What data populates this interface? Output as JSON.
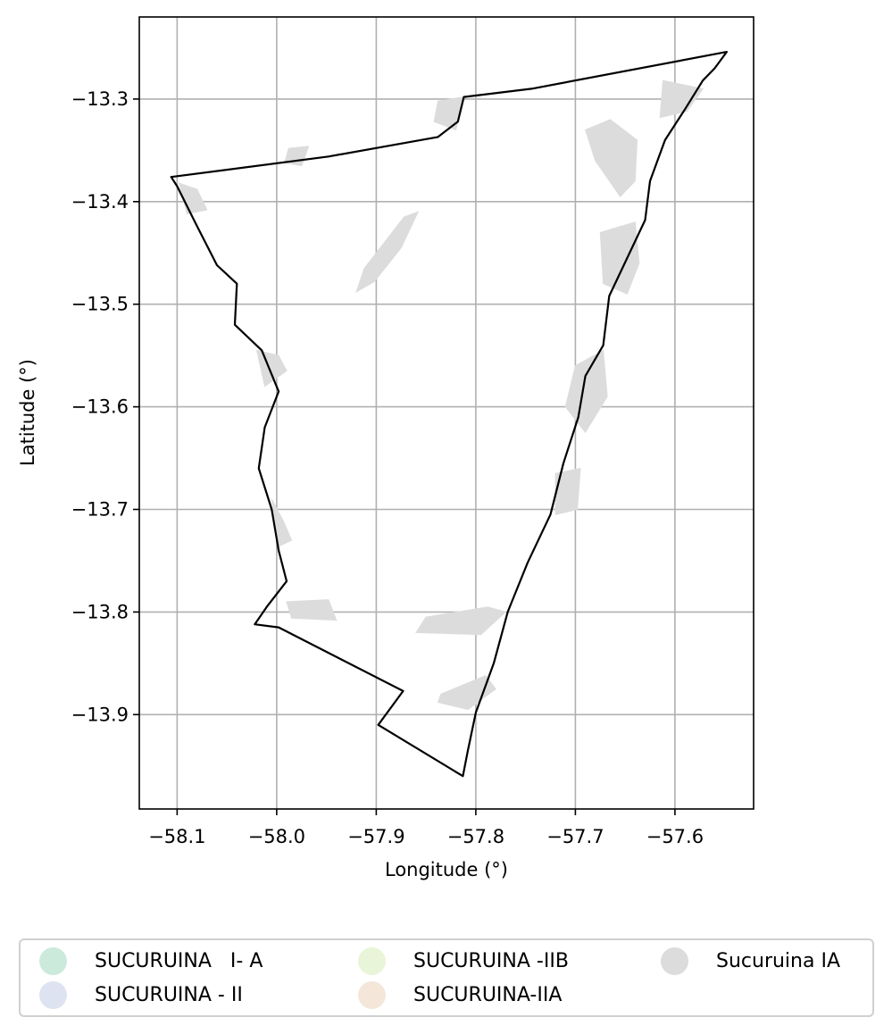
{
  "map": {
    "xlabel": "Longitude (°)",
    "ylabel": "Latitude (°)",
    "x_ticks": [
      -58.1,
      -58.0,
      -57.9,
      -57.8,
      -57.7,
      -57.6
    ],
    "x_tick_labels": [
      "−58.1",
      "−58.0",
      "−57.9",
      "−57.8",
      "−57.7",
      "−57.6"
    ],
    "y_ticks": [
      -13.3,
      -13.4,
      -13.5,
      -13.6,
      -13.7,
      -13.8,
      -13.9
    ],
    "y_tick_labels": [
      "−13.3",
      "−13.4",
      "−13.5",
      "−13.6",
      "−13.7",
      "−13.8",
      "−13.9"
    ],
    "xlim": [
      -58.138,
      -57.521
    ],
    "ylim": [
      -13.992,
      -13.22
    ],
    "grid": true,
    "boundary_color": "#000000",
    "zone_fill_color": "#dcdcdc",
    "boundary": [
      [
        -58.106,
        -13.376
      ],
      [
        -57.948,
        -13.356
      ],
      [
        -57.838,
        -13.337
      ],
      [
        -57.818,
        -13.322
      ],
      [
        -57.812,
        -13.298
      ],
      [
        -57.744,
        -13.29
      ],
      [
        -57.548,
        -13.254
      ],
      [
        -57.56,
        -13.27
      ],
      [
        -57.572,
        -13.282
      ],
      [
        -57.59,
        -13.31
      ],
      [
        -57.61,
        -13.34
      ],
      [
        -57.625,
        -13.38
      ],
      [
        -57.63,
        -13.418
      ],
      [
        -57.648,
        -13.455
      ],
      [
        -57.666,
        -13.492
      ],
      [
        -57.672,
        -13.54
      ],
      [
        -57.69,
        -13.57
      ],
      [
        -57.697,
        -13.61
      ],
      [
        -57.712,
        -13.655
      ],
      [
        -57.725,
        -13.705
      ],
      [
        -57.748,
        -13.752
      ],
      [
        -57.768,
        -13.8
      ],
      [
        -57.782,
        -13.85
      ],
      [
        -57.8,
        -13.898
      ],
      [
        -57.808,
        -13.935
      ],
      [
        -57.813,
        -13.96
      ],
      [
        -57.898,
        -13.91
      ],
      [
        -57.873,
        -13.877
      ],
      [
        -57.998,
        -13.815
      ],
      [
        -58.022,
        -13.812
      ],
      [
        -58.01,
        -13.795
      ],
      [
        -57.99,
        -13.77
      ],
      [
        -57.998,
        -13.74
      ],
      [
        -58.005,
        -13.7
      ],
      [
        -58.018,
        -13.66
      ],
      [
        -58.012,
        -13.62
      ],
      [
        -57.998,
        -13.585
      ],
      [
        -58.015,
        -13.545
      ],
      [
        -58.042,
        -13.52
      ],
      [
        -58.04,
        -13.48
      ],
      [
        -58.06,
        -13.462
      ],
      [
        -58.082,
        -13.42
      ],
      [
        -58.1,
        -13.385
      ],
      [
        -58.106,
        -13.376
      ]
    ],
    "zones": [
      [
        [
          -57.612,
          -13.282
        ],
        [
          -57.572,
          -13.29
        ],
        [
          -57.588,
          -13.312
        ],
        [
          -57.615,
          -13.318
        ]
      ],
      [
        [
          -57.69,
          -13.33
        ],
        [
          -57.665,
          -13.32
        ],
        [
          -57.638,
          -13.34
        ],
        [
          -57.64,
          -13.38
        ],
        [
          -57.655,
          -13.395
        ],
        [
          -57.68,
          -13.36
        ]
      ],
      [
        [
          -57.675,
          -13.43
        ],
        [
          -57.64,
          -13.42
        ],
        [
          -57.636,
          -13.46
        ],
        [
          -57.648,
          -13.49
        ],
        [
          -57.672,
          -13.48
        ]
      ],
      [
        [
          -57.7,
          -13.56
        ],
        [
          -57.672,
          -13.545
        ],
        [
          -57.668,
          -13.59
        ],
        [
          -57.69,
          -13.625
        ],
        [
          -57.71,
          -13.6
        ]
      ],
      [
        [
          -57.72,
          -13.665
        ],
        [
          -57.695,
          -13.66
        ],
        [
          -57.698,
          -13.7
        ],
        [
          -57.72,
          -13.705
        ]
      ],
      [
        [
          -57.85,
          -13.805
        ],
        [
          -57.788,
          -13.795
        ],
        [
          -57.77,
          -13.8
        ],
        [
          -57.795,
          -13.822
        ],
        [
          -57.86,
          -13.82
        ]
      ],
      [
        [
          -57.835,
          -13.88
        ],
        [
          -57.79,
          -13.862
        ],
        [
          -57.78,
          -13.875
        ],
        [
          -57.808,
          -13.895
        ],
        [
          -57.838,
          -13.888
        ]
      ],
      [
        [
          -57.838,
          -13.302
        ],
        [
          -57.812,
          -13.298
        ],
        [
          -57.82,
          -13.33
        ],
        [
          -57.842,
          -13.322
        ]
      ],
      [
        [
          -57.988,
          -13.348
        ],
        [
          -57.968,
          -13.346
        ],
        [
          -57.975,
          -13.365
        ],
        [
          -57.992,
          -13.362
        ]
      ],
      [
        [
          -57.872,
          -13.415
        ],
        [
          -57.858,
          -13.41
        ],
        [
          -57.875,
          -13.445
        ],
        [
          -57.902,
          -13.478
        ],
        [
          -57.92,
          -13.488
        ],
        [
          -57.912,
          -13.465
        ]
      ],
      [
        [
          -58.098,
          -13.382
        ],
        [
          -58.08,
          -13.388
        ],
        [
          -58.07,
          -13.408
        ],
        [
          -58.09,
          -13.412
        ]
      ],
      [
        [
          -58.02,
          -13.545
        ],
        [
          -57.998,
          -13.55
        ],
        [
          -57.99,
          -13.565
        ],
        [
          -58.012,
          -13.58
        ]
      ],
      [
        [
          -58.005,
          -13.69
        ],
        [
          -57.993,
          -13.712
        ],
        [
          -57.985,
          -13.73
        ],
        [
          -57.998,
          -13.736
        ]
      ],
      [
        [
          -57.99,
          -13.79
        ],
        [
          -57.948,
          -13.788
        ],
        [
          -57.94,
          -13.808
        ],
        [
          -57.985,
          -13.806
        ]
      ]
    ]
  },
  "legend": {
    "items": [
      {
        "label": "SUCURUINA   I- A",
        "color": "#cbeadb"
      },
      {
        "label": "SUCURUINA - II",
        "color": "#dde3f0"
      },
      {
        "label": "SUCURUINA -IIB",
        "color": "#e9f5d8"
      },
      {
        "label": "SUCURUINA-IIA",
        "color": "#f4e7da"
      },
      {
        "label": "Sucuruina IA",
        "color": "#dcdcdc"
      }
    ]
  }
}
